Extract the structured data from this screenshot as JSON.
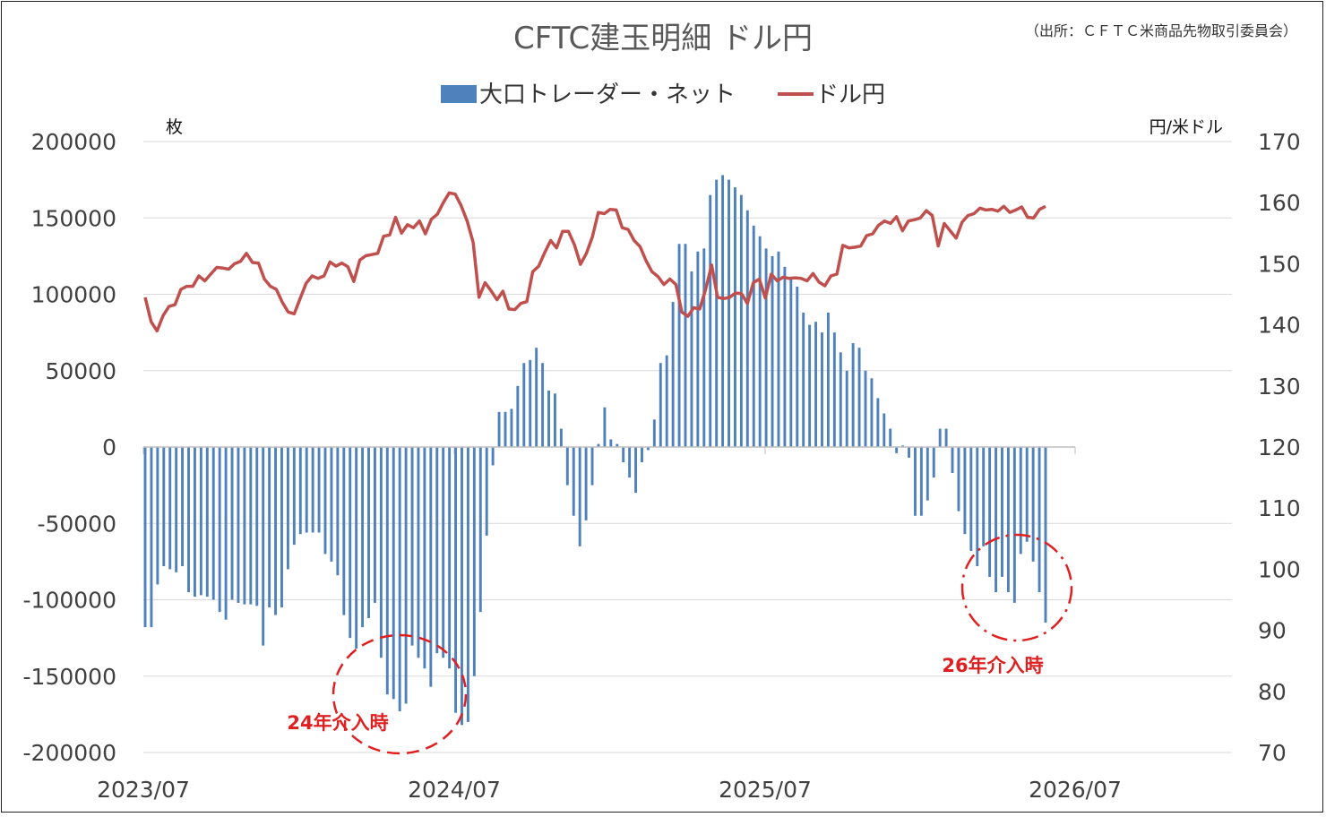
{
  "chart_data": {
    "type": "bar+line",
    "title": "CFTC建玉明細 ドル円",
    "source": "（出所：ＣＦＴＣ米商品先物取引委員会）",
    "legend": [
      {
        "label": "大口トレーダー・ネット",
        "color": "#4f81bd",
        "kind": "bar"
      },
      {
        "label": "ドル円",
        "color": "#c0504d",
        "kind": "line"
      }
    ],
    "y_left": {
      "label": "枚",
      "ticks": [
        "200000",
        "150000",
        "100000",
        "50000",
        "0",
        "-50000",
        "-100000",
        "-150000",
        "-200000"
      ],
      "min": -200000,
      "max": 200000
    },
    "y_right": {
      "label": "円/米ドル",
      "ticks": [
        "170",
        "160",
        "150",
        "140",
        "130",
        "120",
        "110",
        "100",
        "90",
        "80",
        "70"
      ],
      "min": 70,
      "max": 170
    },
    "x_ticks": [
      "2023/07",
      "2024/07",
      "2025/07",
      "2026/07"
    ],
    "grid": true,
    "series": [
      {
        "name": "大口トレーダー・ネット",
        "values": [
          -118000,
          -118000,
          -90000,
          -78000,
          -80000,
          -82000,
          -78000,
          -95000,
          -98000,
          -97000,
          -98000,
          -100000,
          -108000,
          -113000,
          -100000,
          -102000,
          -103000,
          -103000,
          -104000,
          -130000,
          -105000,
          -110000,
          -105000,
          -80000,
          -64000,
          -57000,
          -56000,
          -56000,
          -56000,
          -70000,
          -75000,
          -84000,
          -110000,
          -125000,
          -132000,
          -118000,
          -112000,
          -102000,
          -138000,
          -162000,
          -165000,
          -173000,
          -168000,
          -130000,
          -138000,
          -145000,
          -157000,
          -135000,
          -138000,
          -145000,
          -174000,
          -182000,
          -180000,
          -150000,
          -108000,
          -58000,
          -12000,
          23000,
          23000,
          25000,
          40000,
          55000,
          57000,
          65000,
          55000,
          37000,
          35000,
          12000,
          -25000,
          -45000,
          -65000,
          -48000,
          -25000,
          2000,
          26000,
          5000,
          2000,
          -10000,
          -20000,
          -30000,
          -10000,
          -2000,
          18000,
          55000,
          60000,
          95000,
          133000,
          133000,
          115000,
          128000,
          130000,
          165000,
          175000,
          178000,
          175000,
          170000,
          165000,
          155000,
          145000,
          138000,
          130000,
          125000,
          128000,
          118000,
          110000,
          105000,
          88000,
          80000,
          82000,
          75000,
          88000,
          75000,
          62000,
          50000,
          68000,
          65000,
          50000,
          45000,
          32000,
          22000,
          12000,
          -4000,
          1000,
          -7000,
          -45000,
          -45000,
          -35000,
          -20000,
          12000,
          12000,
          -17000,
          -42000,
          -57000,
          -68000,
          -78000,
          -65000,
          -85000,
          -95000,
          -85000,
          -95000,
          -102000,
          -70000,
          -62000,
          -75000,
          -95000,
          -115000
        ],
        "color": "#4f81bd"
      },
      {
        "name": "ドル円",
        "values": [
          144.5,
          140.5,
          139.0,
          141.5,
          143.0,
          143.3,
          145.8,
          146.3,
          146.3,
          148.0,
          147.2,
          148.3,
          149.4,
          149.3,
          149.1,
          150.0,
          150.4,
          151.7,
          150.2,
          150.1,
          147.5,
          146.3,
          145.8,
          143.7,
          142.1,
          141.8,
          144.3,
          146.8,
          148.0,
          147.6,
          148.0,
          150.3,
          149.6,
          150.1,
          149.5,
          147.1,
          150.6,
          151.3,
          151.5,
          151.7,
          154.5,
          154.7,
          157.6,
          155.0,
          156.4,
          155.9,
          157.0,
          154.9,
          157.3,
          158.1,
          160.0,
          161.6,
          161.4,
          159.5,
          157.0,
          153.5,
          144.5,
          146.9,
          145.6,
          144.1,
          145.5,
          142.6,
          142.5,
          143.5,
          143.8,
          148.7,
          149.6,
          151.8,
          153.8,
          152.6,
          155.3,
          155.3,
          153.1,
          149.9,
          151.7,
          154.4,
          158.4,
          158.2,
          158.9,
          158.8,
          155.9,
          155.6,
          153.8,
          152.8,
          150.5,
          148.7,
          147.9,
          146.6,
          147.5,
          146.6,
          142.1,
          141.4,
          142.8,
          142.6,
          145.8,
          149.8,
          144.5,
          144.3,
          144.5,
          145.2,
          145.1,
          143.5,
          146.9,
          147.5,
          144.4,
          148.3,
          147.2,
          147.8,
          147.6,
          147.7,
          147.6,
          147.2,
          148.4,
          147.0,
          146.4,
          148.0,
          148.3,
          153.0,
          152.6,
          152.7,
          152.9,
          154.6,
          154.9,
          156.3,
          157.0,
          156.6,
          157.7,
          155.4,
          157.0,
          157.2,
          157.5,
          158.7,
          157.9,
          152.9,
          156.6,
          155.4,
          154.2,
          156.8,
          157.9,
          158.2,
          159.1,
          158.8,
          158.9,
          158.6,
          159.4,
          158.4,
          158.8,
          159.3,
          157.6,
          157.5,
          158.9,
          159.4
        ],
        "color": "#c0504d"
      }
    ],
    "annotations": [
      {
        "text": "24年介入時"
      },
      {
        "text": "26年介入時"
      }
    ]
  }
}
